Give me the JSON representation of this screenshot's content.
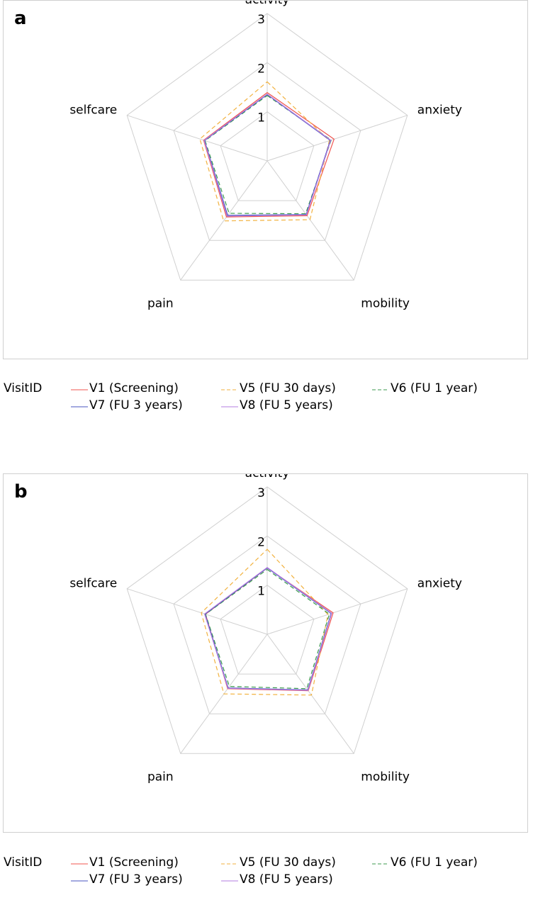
{
  "chart_data": [
    {
      "type": "radar",
      "panel_label": "a",
      "axes": [
        "activity",
        "anxiety",
        "mobility",
        "pain",
        "selfcare"
      ],
      "radial_ticks": [
        "1",
        "2",
        "3"
      ],
      "rmax": 3,
      "grid": true,
      "legend_title": "VisitID",
      "series": [
        {
          "name": "V1 (Screening)",
          "color": "#f0554f",
          "dash": "solid",
          "values": {
            "activity": 1.39,
            "anxiety": 1.43,
            "mobility": 1.38,
            "pain": 1.41,
            "selfcare": 1.36
          }
        },
        {
          "name": "V5 (FU 30 days)",
          "color": "#f2b23f",
          "dash": "dashed",
          "values": {
            "activity": 1.61,
            "anxiety": 1.33,
            "mobility": 1.48,
            "pain": 1.51,
            "selfcare": 1.44
          }
        },
        {
          "name": "V6 (FU 1 year)",
          "color": "#3d9a4f",
          "dash": "dashed",
          "values": {
            "activity": 1.33,
            "anxiety": 1.37,
            "mobility": 1.33,
            "pain": 1.32,
            "selfcare": 1.33
          }
        },
        {
          "name": "V7 (FU 3 years)",
          "color": "#4a55c2",
          "dash": "solid",
          "values": {
            "activity": 1.35,
            "anxiety": 1.35,
            "mobility": 1.35,
            "pain": 1.37,
            "selfcare": 1.34
          }
        },
        {
          "name": "V8 (FU 5 years)",
          "color": "#b37ee0",
          "dash": "solid",
          "values": {
            "activity": 1.36,
            "anxiety": 1.36,
            "mobility": 1.36,
            "pain": 1.39,
            "selfcare": 1.35
          }
        }
      ]
    },
    {
      "type": "radar",
      "panel_label": "b",
      "axes": [
        "activity",
        "anxiety",
        "mobility",
        "pain",
        "selfcare"
      ],
      "radial_ticks": [
        "1",
        "2",
        "3"
      ],
      "rmax": 3,
      "grid": true,
      "legend_title": "VisitID",
      "series": [
        {
          "name": "V1 (Screening)",
          "color": "#f0554f",
          "dash": "solid",
          "values": {
            "activity": 1.35,
            "anxiety": 1.41,
            "mobility": 1.42,
            "pain": 1.37,
            "selfcare": 1.32
          }
        },
        {
          "name": "V5 (FU 30 days)",
          "color": "#f2b23f",
          "dash": "dashed",
          "values": {
            "activity": 1.73,
            "anxiety": 1.3,
            "mobility": 1.53,
            "pain": 1.5,
            "selfcare": 1.41
          }
        },
        {
          "name": "V6 (FU 1 year)",
          "color": "#3d9a4f",
          "dash": "dashed",
          "values": {
            "activity": 1.32,
            "anxiety": 1.33,
            "mobility": 1.37,
            "pain": 1.31,
            "selfcare": 1.32
          }
        },
        {
          "name": "V7 (FU 3 years)",
          "color": "#4a55c2",
          "dash": "solid",
          "values": {
            "activity": 1.35,
            "anxiety": 1.37,
            "mobility": 1.4,
            "pain": 1.35,
            "selfcare": 1.33
          }
        },
        {
          "name": "V8 (FU 5 years)",
          "color": "#b37ee0",
          "dash": "solid",
          "values": {
            "activity": 1.36,
            "anxiety": 1.38,
            "mobility": 1.41,
            "pain": 1.36,
            "selfcare": 1.34
          }
        }
      ]
    }
  ]
}
